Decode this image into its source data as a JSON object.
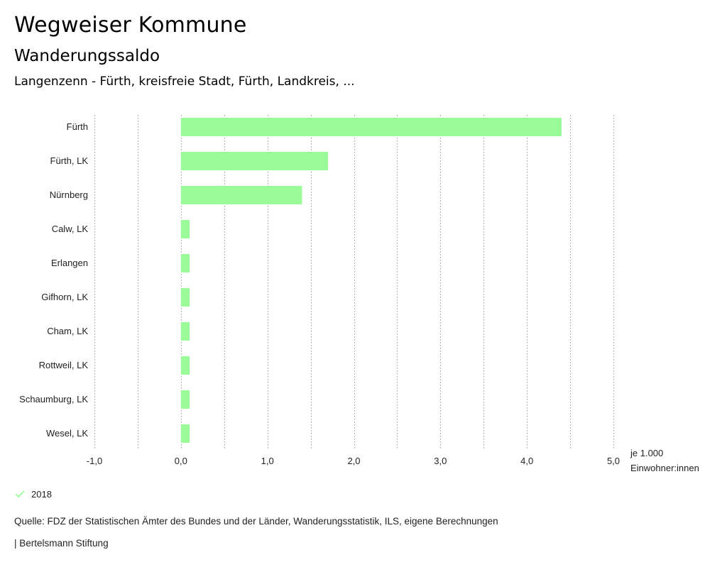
{
  "header": {
    "title": "Wegweiser Kommune",
    "subtitle": "Wanderungssaldo",
    "region": "Langenzenn - Fürth, kreisfreie Stadt, Fürth, Landkreis, ..."
  },
  "chart_data": {
    "type": "bar",
    "orientation": "horizontal",
    "categories": [
      "Fürth",
      "Fürth, LK",
      "Nürnberg",
      "Calw, LK",
      "Erlangen",
      "Gifhorn, LK",
      "Cham, LK",
      "Rottweil, LK",
      "Schaumburg, LK",
      "Wesel, LK"
    ],
    "series": [
      {
        "name": "2018",
        "color": "#98FB98",
        "values": [
          4.4,
          1.7,
          1.4,
          0.1,
          0.1,
          0.1,
          0.1,
          0.1,
          0.1,
          0.1
        ]
      }
    ],
    "xlim": [
      -1.0,
      5.0
    ],
    "xticks": [
      -1.0,
      0.0,
      1.0,
      2.0,
      3.0,
      4.0,
      5.0
    ],
    "xtick_labels": [
      "-1,0",
      "0,0",
      "1,0",
      "2,0",
      "3,0",
      "4,0",
      "5,0"
    ],
    "minor_gridlines": true,
    "grid_style": "dotted",
    "xlabel_lines": [
      "je 1.000",
      "Einwohner:innen"
    ]
  },
  "legend": {
    "label": "2018",
    "color": "#98FB98"
  },
  "footer": {
    "source": "Quelle: FDZ der Statistischen Ämter des Bundes und der Länder, Wanderungsstatistik, ILS, eigene Berechnungen",
    "credit": "| Bertelsmann Stiftung"
  }
}
